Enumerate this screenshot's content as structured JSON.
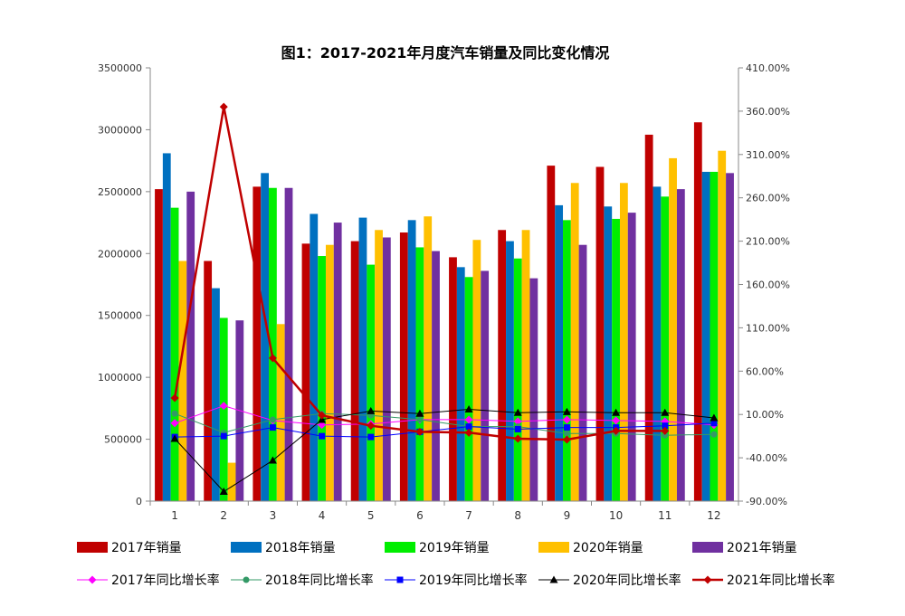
{
  "chart_data": {
    "type": "bar",
    "title": "图1：2017-2021年月度汽车销量及同比变化情况",
    "categories": [
      "1",
      "2",
      "3",
      "4",
      "5",
      "6",
      "7",
      "8",
      "9",
      "10",
      "11",
      "12"
    ],
    "y_left": {
      "min": 0,
      "max": 3500000,
      "ticks": [
        "0",
        "500000",
        "1000000",
        "1500000",
        "2000000",
        "2500000",
        "3000000",
        "3500000"
      ]
    },
    "y_right": {
      "min": -90,
      "max": 410,
      "ticks": [
        "-90.00%",
        "-40.00%",
        "10.00%",
        "60.00%",
        "110.00%",
        "160.00%",
        "210.00%",
        "260.00%",
        "310.00%",
        "360.00%",
        "410.00%"
      ]
    },
    "bar_series": [
      {
        "name": "2017年销量",
        "color": "#c00000",
        "values": [
          2520000,
          1940000,
          2540000,
          2080000,
          2100000,
          2170000,
          1970000,
          2190000,
          2710000,
          2700000,
          2960000,
          3060000
        ]
      },
      {
        "name": "2018年销量",
        "color": "#0070c0",
        "values": [
          2810000,
          1720000,
          2650000,
          2320000,
          2290000,
          2270000,
          1890000,
          2100000,
          2390000,
          2380000,
          2540000,
          2660000
        ]
      },
      {
        "name": "2019年销量",
        "color": "#00ee00",
        "values": [
          2370000,
          1480000,
          2530000,
          1980000,
          1910000,
          2050000,
          1810000,
          1960000,
          2270000,
          2280000,
          2460000,
          2660000
        ]
      },
      {
        "name": "2020年销量",
        "color": "#ffc000",
        "values": [
          1940000,
          310000,
          1430000,
          2070000,
          2190000,
          2300000,
          2110000,
          2190000,
          2570000,
          2570000,
          2770000,
          2830000
        ]
      },
      {
        "name": "2021年销量",
        "color": "#7030a0",
        "values": [
          2500000,
          1460000,
          2530000,
          2250000,
          2130000,
          2020000,
          1860000,
          1800000,
          2070000,
          2330000,
          2520000,
          2650000
        ]
      }
    ],
    "line_series": [
      {
        "name": "2017年同比增长率",
        "color": "#ff00ff",
        "marker": "diamond",
        "values": [
          0,
          20,
          3,
          -2,
          -1,
          4,
          4,
          2,
          4,
          3,
          2,
          -2
        ]
      },
      {
        "name": "2018年同比增长率",
        "color": "#339966",
        "marker": "circle",
        "values": [
          11,
          -11,
          4,
          11,
          9,
          4,
          -4,
          -4,
          -12,
          -12,
          -14,
          -13
        ]
      },
      {
        "name": "2019年同比增长率",
        "color": "#0000ff",
        "marker": "square",
        "values": [
          -16,
          -15,
          -5,
          -15,
          -16,
          -10,
          -4,
          -7,
          -5,
          -5,
          -3,
          0
        ]
      },
      {
        "name": "2020年同比增长率",
        "color": "#000000",
        "marker": "triangle",
        "values": [
          -18,
          -79,
          -43,
          4,
          14,
          11,
          16,
          12,
          13,
          12,
          12,
          6
        ]
      },
      {
        "name": "2021年同比增长率",
        "color": "#c00000",
        "marker": "diamond",
        "values": [
          29,
          365,
          75,
          9,
          -3,
          -10,
          -11,
          -18,
          -19,
          -9,
          -9,
          null
        ]
      }
    ],
    "grid": false,
    "legend_position": "bottom"
  }
}
